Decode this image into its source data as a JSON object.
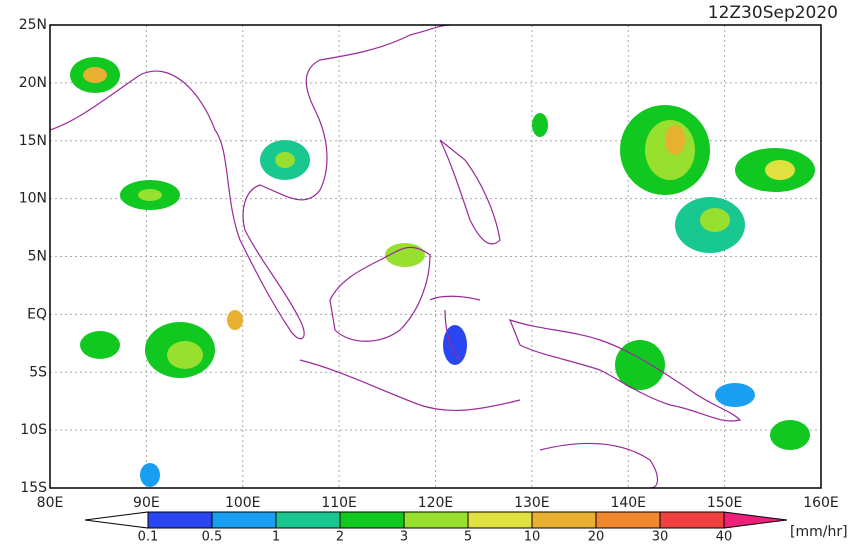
{
  "title": "12Z30Sep2020",
  "latitude_labels": [
    "25N",
    "20N",
    "15N",
    "10N",
    "5N",
    "EQ",
    "5S",
    "10S",
    "15S"
  ],
  "longitude_labels": [
    "80E",
    "90E",
    "100E",
    "110E",
    "120E",
    "130E",
    "140E",
    "150E",
    "160E"
  ],
  "colorbar": {
    "labels": [
      "0.1",
      "0.5",
      "1",
      "2",
      "3",
      "5",
      "10",
      "20",
      "30",
      "40"
    ],
    "colors": [
      "#ffffff",
      "#2a46f0",
      "#1a9ef0",
      "#18c890",
      "#10c820",
      "#98e030",
      "#e0e040",
      "#e8b030",
      "#f08830",
      "#f04040",
      "#f0207a"
    ],
    "unit": "[mm/hr]"
  }
}
